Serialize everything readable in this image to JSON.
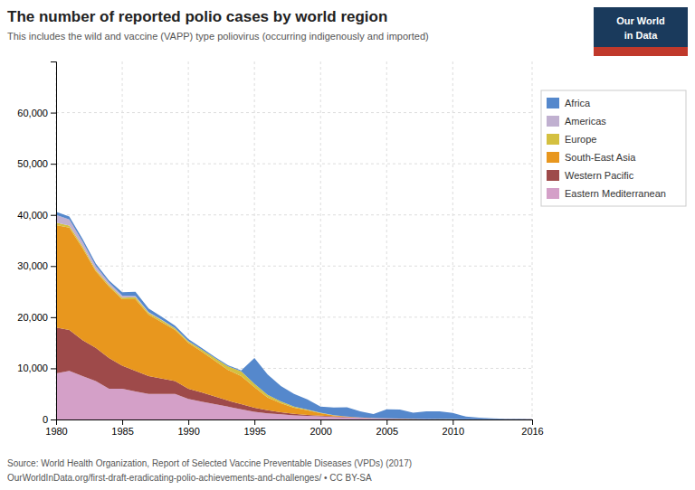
{
  "chart_data": {
    "type": "area",
    "stacked": true,
    "title": "The number of reported polio cases by world region",
    "subtitle": "This includes the wild and vaccine (VAPP) type poliovirus (occurring indigenously and imported)",
    "annotations": [
      "Source: World Health Organization, Report of Selected Vaccine Preventable Diseases (VPDs) (2017)",
      "OurWorldInData.org/first-draft-eradicating-polio-achievements-and-challenges/ • CC BY-SA",
      "Our World",
      "in Data"
    ],
    "x": [
      1980,
      1981,
      1982,
      1983,
      1984,
      1985,
      1986,
      1987,
      1988,
      1989,
      1990,
      1991,
      1992,
      1993,
      1994,
      1995,
      1996,
      1997,
      1998,
      1999,
      2000,
      2001,
      2002,
      2003,
      2004,
      2005,
      2006,
      2007,
      2008,
      2009,
      2010,
      2011,
      2012,
      2013,
      2014,
      2015,
      2016
    ],
    "series": [
      {
        "name": "Eastern Mediterranean",
        "color": "#d4a0c8",
        "values": [
          9000,
          9500,
          8500,
          7500,
          6000,
          6000,
          5500,
          5000,
          5000,
          5000,
          4000,
          3500,
          3000,
          2500,
          2000,
          1500,
          1200,
          1000,
          800,
          700,
          600,
          500,
          400,
          300,
          200,
          150,
          120,
          100,
          80,
          60,
          50,
          40,
          30,
          20,
          20,
          20,
          20
        ]
      },
      {
        "name": "Western Pacific",
        "color": "#9e4a4a",
        "values": [
          9000,
          8000,
          7000,
          6500,
          6000,
          4500,
          4000,
          3500,
          3000,
          2500,
          2000,
          1800,
          1500,
          1200,
          1000,
          800,
          600,
          400,
          300,
          200,
          150,
          100,
          70,
          50,
          30,
          20,
          10,
          5,
          5,
          5,
          5,
          5,
          5,
          5,
          5,
          5,
          5
        ]
      },
      {
        "name": "South-East Asia",
        "color": "#e8971e",
        "values": [
          20000,
          20000,
          18000,
          15000,
          14000,
          13000,
          14000,
          12000,
          11000,
          10000,
          9000,
          8000,
          7000,
          6000,
          5500,
          4000,
          2500,
          1800,
          1200,
          900,
          500,
          200,
          100,
          50,
          20,
          30,
          30,
          30,
          20,
          15,
          10,
          10,
          10,
          10,
          10,
          10,
          10
        ]
      },
      {
        "name": "Europe",
        "color": "#d4c040",
        "values": [
          500,
          400,
          400,
          300,
          300,
          300,
          400,
          350,
          400,
          300,
          300,
          400,
          500,
          700,
          900,
          700,
          500,
          350,
          200,
          150,
          80,
          50,
          20,
          10,
          5,
          5,
          5,
          5,
          5,
          5,
          5,
          5,
          5,
          5,
          5,
          5,
          5
        ]
      },
      {
        "name": "Americas",
        "color": "#c0b0d0",
        "values": [
          1500,
          1200,
          900,
          700,
          500,
          400,
          250,
          150,
          80,
          40,
          15,
          8,
          3,
          1,
          1,
          0,
          0,
          0,
          0,
          0,
          0,
          0,
          0,
          0,
          0,
          0,
          0,
          0,
          0,
          0,
          0,
          0,
          0,
          0,
          0,
          0,
          0
        ]
      },
      {
        "name": "Africa",
        "color": "#5588cc",
        "values": [
          600,
          600,
          500,
          500,
          400,
          700,
          800,
          700,
          600,
          500,
          400,
          300,
          250,
          200,
          180,
          5000,
          4000,
          3000,
          2500,
          2000,
          1200,
          1500,
          1800,
          1200,
          800,
          1800,
          1800,
          1200,
          1500,
          1500,
          1200,
          500,
          300,
          200,
          100,
          100,
          50
        ]
      }
    ],
    "xlim": [
      1980,
      2016
    ],
    "xticks": [
      1980,
      1985,
      1990,
      1995,
      2000,
      2005,
      2010,
      2016
    ],
    "ylim": [
      0,
      70000
    ],
    "yticks": [
      0,
      {
        "value": 10000,
        "label": "10,000"
      },
      {
        "value": 20000,
        "label": "20,000"
      },
      {
        "value": 30000,
        "label": "30,000"
      },
      {
        "value": 40000,
        "label": "40,000"
      },
      {
        "value": 50000,
        "label": "50,000"
      },
      {
        "value": 60000,
        "label": "60,000"
      }
    ],
    "grid": true,
    "legend": "right"
  }
}
